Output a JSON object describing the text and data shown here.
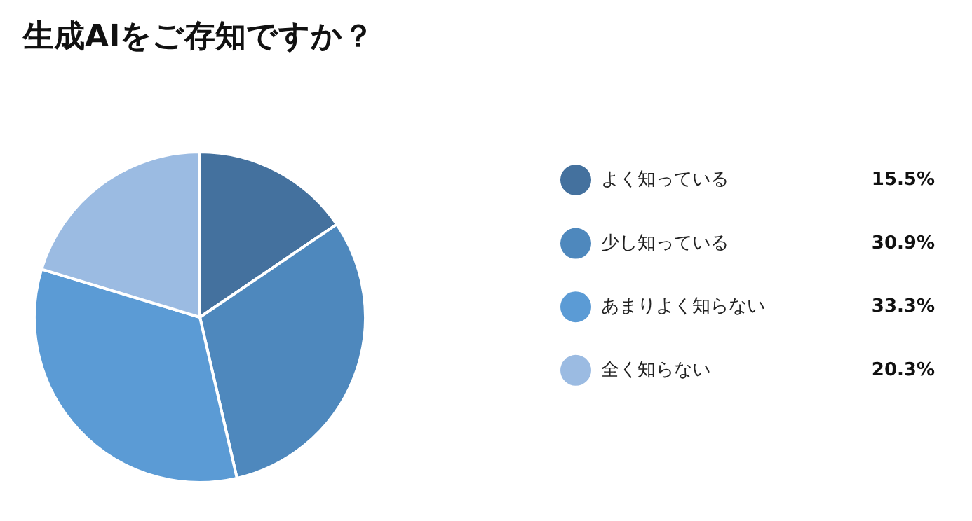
{
  "chart_data": {
    "type": "pie",
    "title": "生成AIをご存知ですか？",
    "categories": [
      "よく知っている",
      "少し知っている",
      "あまりよく知らない",
      "全く知らない"
    ],
    "values": [
      15.5,
      30.9,
      33.3,
      20.3
    ],
    "value_labels": [
      "15.5%",
      "30.9%",
      "33.3%",
      "20.3%"
    ],
    "colors": [
      "#44719e",
      "#4e88bd",
      "#5b9bd5",
      "#9bbbe2"
    ],
    "legend": "right"
  }
}
